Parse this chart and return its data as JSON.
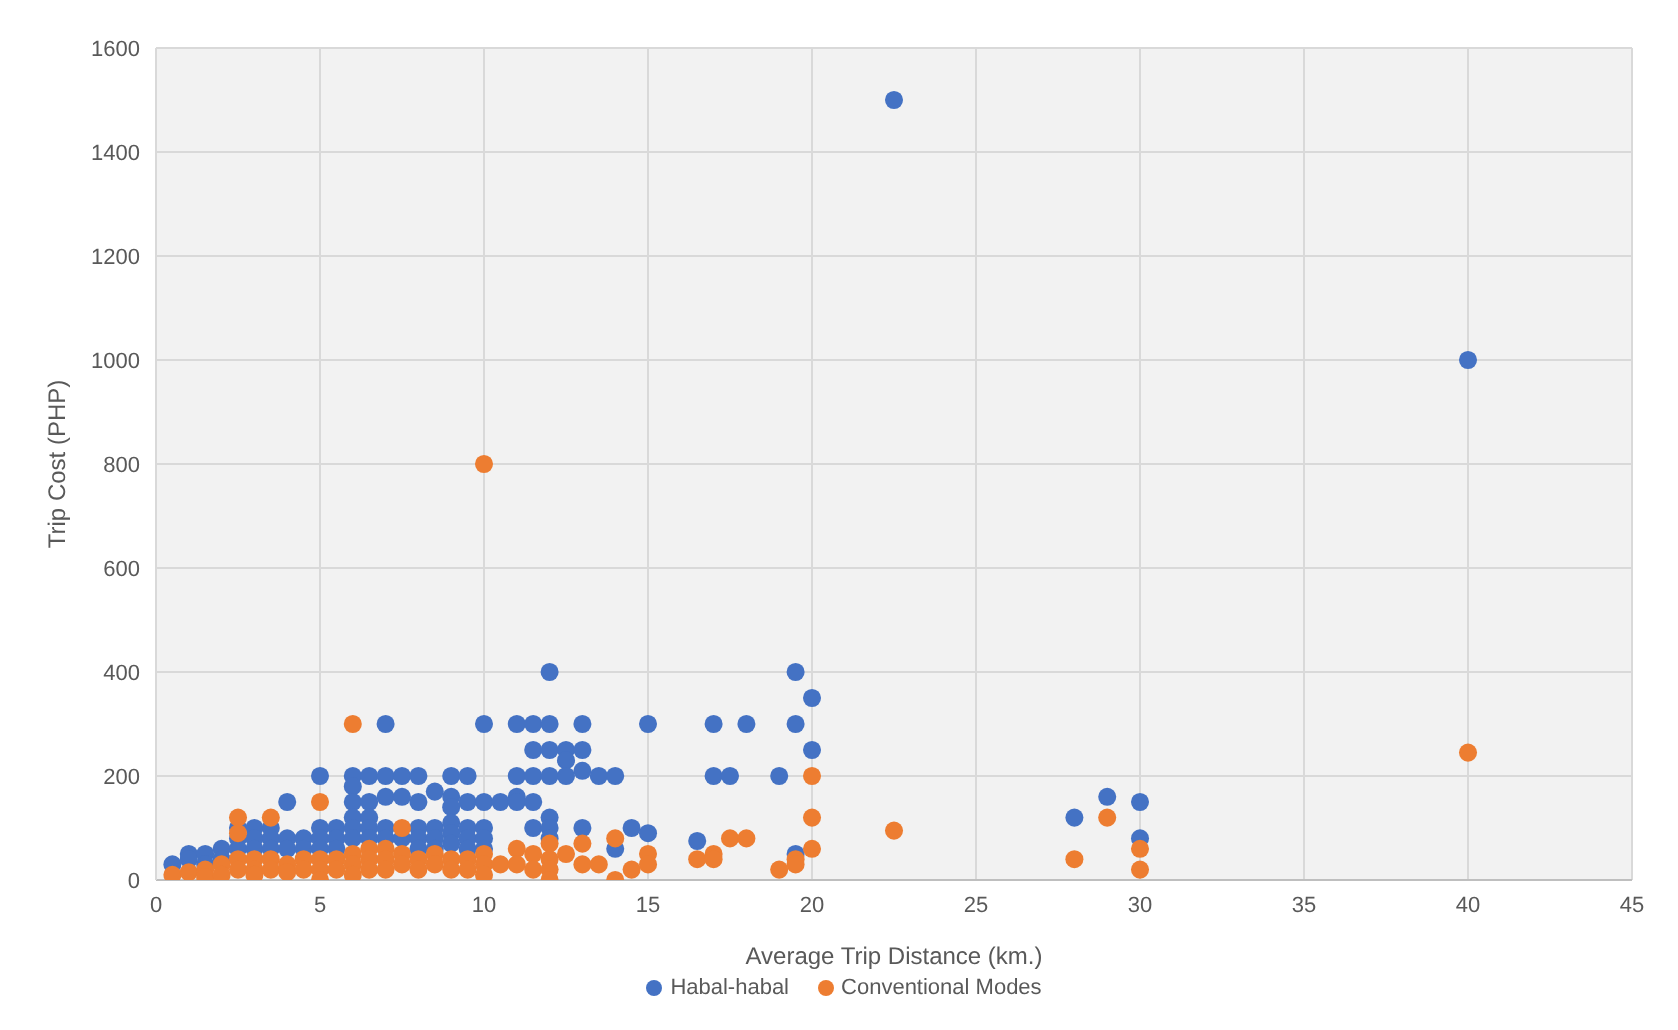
{
  "chart_data": {
    "type": "scatter",
    "xlabel": "Average Trip Distance (km.)",
    "ylabel": "Trip Cost (PHP)",
    "xlim": [
      0,
      45
    ],
    "xticks": [
      0,
      5,
      10,
      15,
      20,
      25,
      30,
      35,
      40,
      45
    ],
    "ylim": [
      0,
      1600
    ],
    "yticks": [
      0,
      200,
      400,
      600,
      800,
      1000,
      1200,
      1400,
      1600
    ],
    "grid": true,
    "legend": "bottom",
    "marker": "circle",
    "series": [
      {
        "name": "Habal-habal",
        "color": "#4472c4",
        "x": [
          0.5,
          1,
          1,
          1.5,
          1.5,
          2,
          2,
          2.5,
          2.5,
          2.5,
          3,
          3,
          3,
          3.5,
          3.5,
          3.5,
          4,
          4,
          4,
          4.5,
          4.5,
          5,
          5,
          5,
          5,
          5.5,
          5.5,
          5.5,
          6,
          6,
          6,
          6,
          6,
          6,
          6.5,
          6.5,
          6.5,
          6.5,
          6.5,
          7,
          7,
          7,
          7,
          7,
          7.5,
          7.5,
          7.5,
          8,
          8,
          8,
          8,
          8,
          8.5,
          8.5,
          8.5,
          8.5,
          9,
          9,
          9,
          9,
          9,
          9,
          9.5,
          9.5,
          9.5,
          9.5,
          9.5,
          10,
          10,
          10,
          10,
          10,
          10.5,
          11,
          11,
          11,
          11,
          11.5,
          11.5,
          11.5,
          11.5,
          11.5,
          12,
          12,
          12,
          12,
          12,
          12,
          12,
          12.5,
          12.5,
          12.5,
          13,
          13,
          13,
          13,
          13.5,
          14,
          14,
          14.5,
          15,
          15,
          16.5,
          17,
          17,
          17.5,
          18,
          19,
          19.5,
          19.5,
          19.5,
          20,
          20,
          22.5,
          28,
          29,
          30,
          30,
          40
        ],
        "values": [
          30,
          50,
          40,
          50,
          30,
          60,
          40,
          100,
          80,
          60,
          100,
          80,
          60,
          100,
          80,
          60,
          150,
          80,
          60,
          80,
          60,
          200,
          100,
          80,
          60,
          100,
          80,
          60,
          200,
          180,
          150,
          120,
          100,
          80,
          200,
          150,
          120,
          100,
          80,
          300,
          200,
          160,
          100,
          80,
          200,
          160,
          80,
          200,
          150,
          100,
          80,
          60,
          170,
          100,
          80,
          60,
          200,
          160,
          140,
          110,
          90,
          70,
          200,
          150,
          100,
          80,
          60,
          300,
          150,
          100,
          80,
          60,
          150,
          300,
          200,
          160,
          150,
          300,
          250,
          200,
          150,
          100,
          400,
          300,
          250,
          200,
          120,
          100,
          80,
          250,
          230,
          200,
          300,
          250,
          210,
          100,
          200,
          200,
          60,
          100,
          300,
          90,
          75,
          300,
          200,
          200,
          300,
          200,
          400,
          300,
          50,
          350,
          250,
          1500,
          120,
          160,
          150,
          80,
          1000
        ]
      },
      {
        "name": "Conventional Modes",
        "color": "#ed7d31",
        "x": [
          0.5,
          1,
          1.5,
          1.5,
          2,
          2,
          2.5,
          2.5,
          2.5,
          2.5,
          3,
          3,
          3,
          3.5,
          3.5,
          3.5,
          4,
          4,
          4.5,
          4.5,
          5,
          5,
          5,
          5,
          5.5,
          5.5,
          6,
          6,
          6,
          6,
          6.5,
          6.5,
          6.5,
          7,
          7,
          7,
          7.5,
          7.5,
          7.5,
          8,
          8,
          8.5,
          8.5,
          9,
          9,
          9.5,
          9.5,
          10,
          10,
          10,
          10,
          10.5,
          11,
          11,
          11.5,
          11.5,
          12,
          12,
          12,
          12,
          12.5,
          13,
          13,
          13.5,
          14,
          14,
          14.5,
          15,
          15,
          16.5,
          17,
          17,
          17.5,
          18,
          19,
          19.5,
          19.5,
          20,
          20,
          20,
          22.5,
          28,
          29,
          30,
          30,
          40
        ],
        "values": [
          10,
          15,
          20,
          5,
          30,
          10,
          120,
          90,
          40,
          20,
          40,
          20,
          10,
          120,
          40,
          20,
          30,
          15,
          40,
          20,
          150,
          40,
          20,
          0,
          40,
          20,
          300,
          50,
          30,
          10,
          60,
          40,
          20,
          60,
          40,
          20,
          100,
          50,
          30,
          40,
          20,
          50,
          30,
          40,
          20,
          40,
          20,
          800,
          50,
          30,
          10,
          30,
          60,
          30,
          50,
          20,
          70,
          40,
          20,
          0,
          50,
          70,
          30,
          30,
          80,
          0,
          20,
          50,
          30,
          40,
          50,
          40,
          80,
          80,
          20,
          40,
          30,
          200,
          120,
          60,
          95,
          40,
          120,
          60,
          20,
          245
        ]
      }
    ]
  }
}
